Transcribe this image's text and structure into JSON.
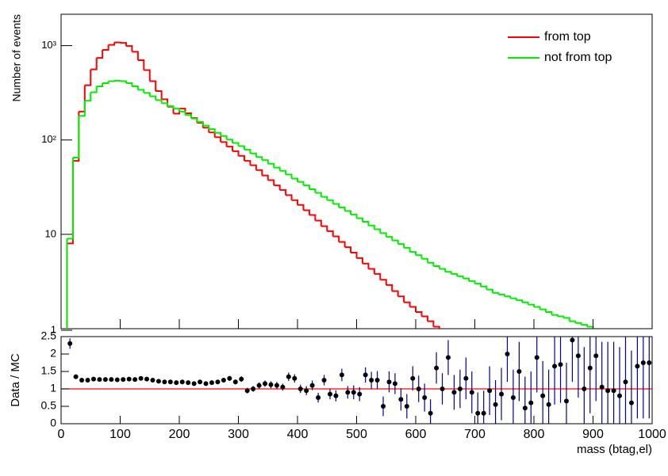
{
  "chart_data": [
    {
      "type": "histogram",
      "y_label": "Number of events",
      "log_scale": true,
      "ylim": [
        1,
        2150
      ],
      "xlim": [
        0,
        1000
      ],
      "yticks": [
        1,
        10,
        {
          "value": 100,
          "label": "10²"
        },
        {
          "value": 1000,
          "label": "10³"
        }
      ],
      "legend": "top-right",
      "bins": [
        0,
        10,
        20,
        30,
        40,
        50,
        60,
        70,
        80,
        90,
        100,
        110,
        120,
        130,
        140,
        150,
        160,
        170,
        180,
        190,
        200,
        210,
        220,
        230,
        240,
        250,
        260,
        270,
        280,
        290,
        300,
        310,
        320,
        330,
        340,
        350,
        360,
        370,
        380,
        390,
        400,
        410,
        420,
        430,
        440,
        450,
        460,
        470,
        480,
        490,
        500,
        510,
        520,
        530,
        540,
        550,
        560,
        570,
        580,
        590,
        600,
        610,
        620,
        630,
        640,
        650,
        660,
        670,
        680,
        690,
        700,
        710,
        720,
        730,
        740,
        750,
        760,
        770,
        780,
        790,
        800,
        810,
        820,
        830,
        840,
        850,
        860,
        870,
        880,
        890,
        900,
        910,
        920,
        930,
        940,
        950,
        960,
        970,
        980,
        990,
        1000
      ],
      "series": [
        {
          "name": "from top",
          "color": "#ff0000",
          "values": [
            0,
            8,
            60,
            200,
            380,
            560,
            740,
            900,
            1020,
            1080,
            1070,
            990,
            860,
            700,
            550,
            420,
            330,
            270,
            225,
            190,
            215,
            192,
            171,
            152,
            135,
            120,
            107,
            95,
            85,
            76,
            68,
            60,
            54,
            48,
            42,
            37.5,
            33,
            29.5,
            26,
            23,
            20.5,
            18,
            16,
            14,
            12.2,
            10.8,
            9.5,
            8.3,
            7.3,
            6.4,
            5.6,
            4.9,
            4.3,
            3.8,
            3.3,
            2.9,
            2.5,
            2.2,
            1.9,
            1.7,
            1.5,
            1.35,
            1.2,
            1.05,
            0.95,
            0.85,
            0.75,
            0.7,
            0.6,
            0.5,
            0.45,
            0.4,
            0.35,
            0.3,
            0.25,
            0.2,
            0.18,
            0.15,
            0.12,
            0.1,
            0.08,
            0,
            0,
            0,
            0,
            0,
            0,
            0,
            0,
            0,
            0,
            0,
            0,
            0,
            0,
            0,
            0,
            0,
            0,
            0
          ]
        },
        {
          "name": "not from top",
          "color": "#00ee00",
          "values": [
            0,
            9,
            65,
            180,
            260,
            320,
            370,
            400,
            420,
            425,
            420,
            400,
            370,
            340,
            315,
            290,
            265,
            245,
            228,
            215,
            200,
            184,
            169,
            155,
            142,
            130,
            119,
            110,
            101,
            93,
            86,
            79,
            72,
            66,
            61,
            56,
            51,
            47,
            43,
            39,
            36,
            33,
            30,
            27.5,
            25,
            23,
            21,
            19.3,
            17.7,
            16.2,
            14.8,
            13.6,
            12.4,
            11.3,
            10.3,
            9.4,
            8.6,
            7.9,
            7.2,
            6.5,
            6.0,
            5.5,
            5.0,
            4.6,
            4.3,
            4.0,
            3.8,
            3.6,
            3.4,
            3.2,
            3.0,
            2.8,
            2.6,
            2.4,
            2.3,
            2.2,
            2.1,
            2.0,
            1.9,
            1.8,
            1.7,
            1.6,
            1.5,
            1.4,
            1.35,
            1.3,
            1.2,
            1.15,
            1.1,
            1.05,
            1.0,
            0.9,
            0.8,
            0.7,
            0.6,
            0.5,
            0.4,
            0.35,
            0.3,
            0.25
          ]
        }
      ]
    },
    {
      "type": "errorbar",
      "x_label": "mass (btag,el)",
      "y_label": "Data / MC",
      "xlim": [
        0,
        1000
      ],
      "ylim": [
        0,
        2.5
      ],
      "xticks": [
        0,
        100,
        200,
        300,
        400,
        500,
        600,
        700,
        800,
        900,
        1000
      ],
      "yticks": [
        0,
        0.5,
        1,
        1.5,
        2,
        2.5
      ],
      "color": "#000000",
      "error_color": "#000099",
      "hline": 1,
      "hline_color": "#ff0000",
      "x": [
        15,
        25,
        35,
        45,
        55,
        65,
        75,
        85,
        95,
        105,
        115,
        125,
        135,
        145,
        155,
        165,
        175,
        185,
        195,
        205,
        215,
        225,
        235,
        245,
        255,
        265,
        275,
        285,
        295,
        305,
        315,
        325,
        335,
        345,
        355,
        365,
        375,
        385,
        395,
        405,
        415,
        425,
        435,
        445,
        455,
        465,
        475,
        485,
        495,
        505,
        515,
        525,
        535,
        545,
        555,
        565,
        575,
        585,
        595,
        605,
        615,
        625,
        635,
        645,
        655,
        665,
        675,
        685,
        695,
        705,
        715,
        725,
        735,
        745,
        755,
        765,
        775,
        785,
        795,
        805,
        815,
        825,
        835,
        845,
        855,
        865,
        875,
        885,
        895,
        905,
        915,
        925,
        935,
        945,
        955,
        965,
        975,
        985,
        995
      ],
      "values": [
        2.3,
        1.35,
        1.25,
        1.25,
        1.28,
        1.27,
        1.27,
        1.27,
        1.26,
        1.27,
        1.28,
        1.27,
        1.3,
        1.28,
        1.25,
        1.22,
        1.2,
        1.2,
        1.18,
        1.2,
        1.18,
        1.15,
        1.2,
        1.15,
        1.18,
        1.2,
        1.25,
        1.3,
        1.2,
        1.28,
        0.95,
        1.0,
        1.1,
        1.15,
        1.12,
        1.1,
        1.05,
        1.35,
        1.3,
        1.0,
        0.95,
        1.1,
        0.75,
        1.25,
        0.85,
        0.8,
        1.4,
        0.9,
        0.9,
        0.85,
        1.4,
        1.25,
        1.25,
        0.5,
        1.2,
        1.15,
        0.7,
        0.5,
        1.3,
        1.0,
        0.75,
        0.3,
        1.6,
        1.0,
        1.9,
        0.9,
        1.0,
        1.3,
        0.9,
        0.3,
        0.3,
        0.95,
        0.55,
        0.85,
        2.0,
        0.75,
        1.5,
        0.45,
        0.6,
        1.9,
        0.8,
        0.55,
        1.65,
        1.7,
        0.65,
        2.4,
        1.95,
        1.0,
        1.6,
        1.95,
        1.05,
        0.95,
        0.95,
        0.8,
        1.2,
        0.6,
        1.65,
        1.75,
        1.75
      ],
      "errors": [
        0.15,
        0.06,
        0.03,
        0.03,
        0.03,
        0.03,
        0.03,
        0.03,
        0.03,
        0.03,
        0.03,
        0.03,
        0.03,
        0.03,
        0.03,
        0.03,
        0.03,
        0.04,
        0.04,
        0.04,
        0.04,
        0.04,
        0.05,
        0.05,
        0.05,
        0.06,
        0.06,
        0.07,
        0.07,
        0.08,
        0.08,
        0.08,
        0.09,
        0.09,
        0.1,
        0.1,
        0.1,
        0.12,
        0.12,
        0.12,
        0.13,
        0.14,
        0.14,
        0.15,
        0.15,
        0.16,
        0.18,
        0.18,
        0.2,
        0.2,
        0.22,
        0.24,
        0.26,
        0.28,
        0.3,
        0.3,
        0.32,
        0.35,
        0.35,
        0.38,
        0.4,
        0.4,
        0.45,
        0.45,
        0.5,
        0.5,
        0.55,
        0.6,
        0.6,
        0.6,
        0.65,
        0.7,
        0.7,
        0.75,
        0.8,
        0.8,
        0.85,
        0.9,
        0.9,
        1.0,
        1.0,
        1.0,
        1.1,
        1.1,
        1.1,
        1.2,
        1.2,
        1.2,
        1.3,
        1.3,
        1.3,
        1.4,
        1.4,
        1.4,
        1.5,
        1.5,
        1.5,
        1.6,
        1.6
      ]
    }
  ]
}
